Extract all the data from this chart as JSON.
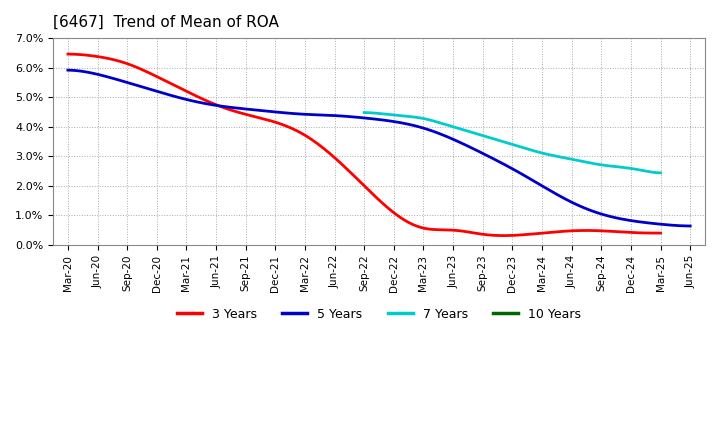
{
  "title": "[6467]  Trend of Mean of ROA",
  "title_fontsize": 11,
  "background_color": "#ffffff",
  "plot_bg_color": "#ffffff",
  "grid_color": "#aaaaaa",
  "ylim": [
    0.0,
    0.07
  ],
  "yticks": [
    0.0,
    0.01,
    0.02,
    0.03,
    0.04,
    0.05,
    0.06,
    0.07
  ],
  "x_labels": [
    "Mar-20",
    "Jun-20",
    "Sep-20",
    "Dec-20",
    "Mar-21",
    "Jun-21",
    "Sep-21",
    "Dec-21",
    "Mar-22",
    "Jun-22",
    "Sep-22",
    "Dec-22",
    "Mar-23",
    "Jun-23",
    "Sep-23",
    "Dec-23",
    "Mar-24",
    "Jun-24",
    "Sep-24",
    "Dec-24",
    "Mar-25",
    "Jun-25"
  ],
  "series": {
    "3 Years": {
      "color": "#ff0000",
      "data": [
        0.065,
        0.064,
        0.062,
        0.057,
        0.052,
        0.047,
        0.044,
        0.042,
        0.038,
        0.03,
        0.02,
        0.01,
        0.004,
        0.006,
        0.003,
        0.003,
        0.004,
        0.005,
        0.005,
        0.004,
        0.004,
        null
      ]
    },
    "5 Years": {
      "color": "#0000cc",
      "data": [
        0.06,
        0.058,
        0.055,
        0.052,
        0.049,
        0.047,
        0.046,
        0.045,
        0.044,
        0.044,
        0.043,
        0.042,
        0.04,
        0.036,
        0.031,
        0.026,
        0.02,
        0.014,
        0.01,
        0.008,
        0.007,
        0.006
      ]
    },
    "7 Years": {
      "color": "#00cccc",
      "data": [
        null,
        null,
        null,
        null,
        null,
        null,
        null,
        null,
        null,
        null,
        0.045,
        0.044,
        0.043,
        0.04,
        0.037,
        0.034,
        0.031,
        0.029,
        0.027,
        0.026,
        0.024,
        null
      ]
    },
    "10 Years": {
      "color": "#006600",
      "data": [
        null,
        null,
        null,
        null,
        null,
        null,
        null,
        null,
        null,
        null,
        null,
        null,
        null,
        null,
        null,
        null,
        null,
        null,
        null,
        null,
        null,
        null
      ]
    }
  },
  "legend_entries": [
    "3 Years",
    "5 Years",
    "7 Years",
    "10 Years"
  ],
  "legend_colors": [
    "#ff0000",
    "#0000cc",
    "#00cccc",
    "#006600"
  ]
}
